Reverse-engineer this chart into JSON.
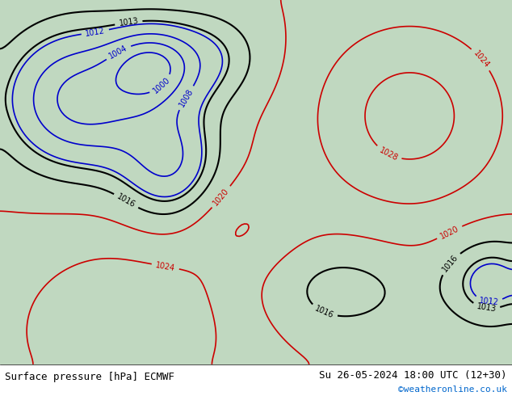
{
  "title_left": "Surface pressure [hPa] ECMWF",
  "title_right": "Su 26-05-2024 18:00 UTC (12+30)",
  "credit": "©weatheronline.co.uk",
  "bg_ocean": "#d8ecd8",
  "bg_land": "#c8e8c8",
  "contour_low_color": "#0000cc",
  "contour_high_color": "#cc0000",
  "contour_mid_color": "#000000",
  "font_size_title": 9,
  "font_size_credit": 8,
  "figsize": [
    6.34,
    4.9
  ],
  "dpi": 100
}
